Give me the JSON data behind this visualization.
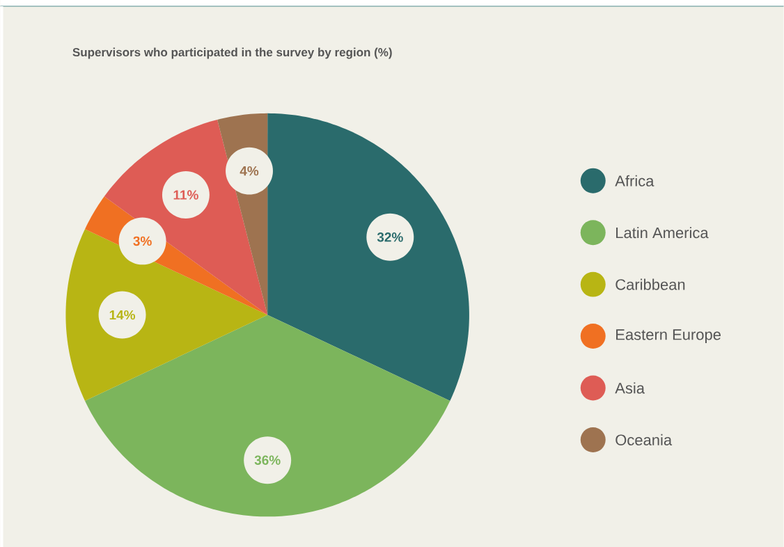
{
  "chart_data": {
    "type": "pie",
    "title": "Supervisors who participated in the survey by region (%)",
    "categories": [
      "Africa",
      "Latin America",
      "Caribbean",
      "Eastern Europe",
      "Asia",
      "Oceania"
    ],
    "values": [
      32,
      36,
      14,
      3,
      11,
      4
    ],
    "colors": [
      "#2a6b6c",
      "#7cb55c",
      "#b8b514",
      "#f07022",
      "#de5c55",
      "#9e7350"
    ],
    "value_labels": [
      "32%",
      "36%",
      "14%",
      "3%",
      "11%",
      "4%"
    ],
    "legend": "right"
  }
}
